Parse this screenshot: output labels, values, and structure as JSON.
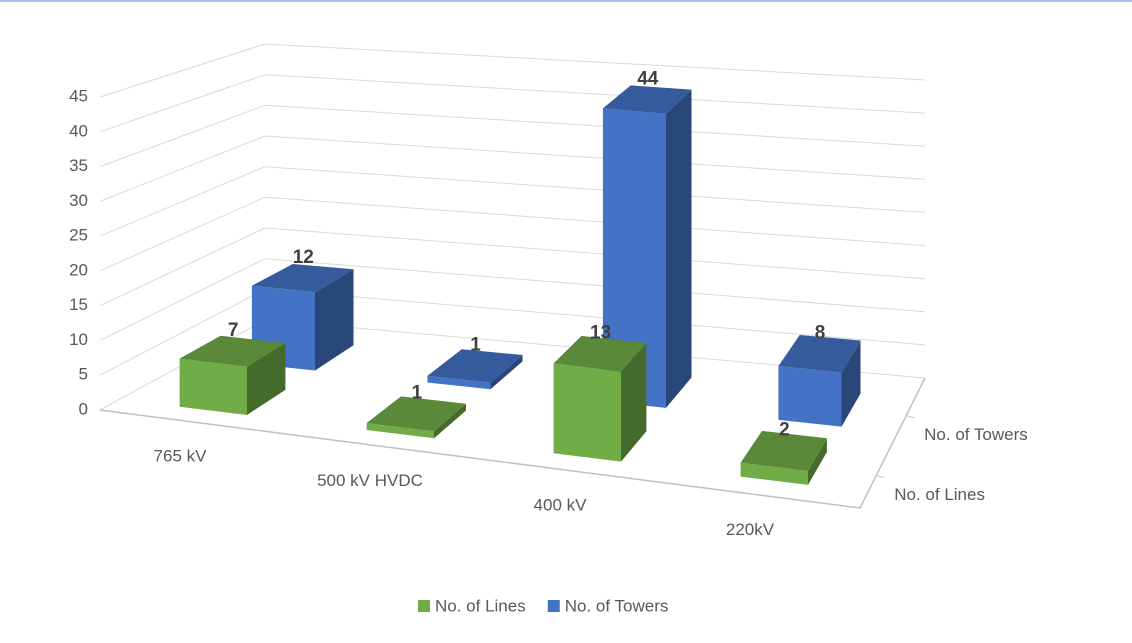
{
  "chart_data": {
    "type": "bar3d",
    "categories": [
      "765 kV",
      "500 kV HVDC",
      "400 kV",
      "220kV"
    ],
    "series": [
      {
        "name": "No. of Lines",
        "color": "#70ad47",
        "values": [
          7,
          1,
          13,
          2
        ]
      },
      {
        "name": "No. of Towers",
        "color": "#4472c4",
        "values": [
          12,
          1,
          44,
          8
        ]
      }
    ],
    "ylim": [
      0,
      45
    ],
    "yticks": [
      0,
      5,
      10,
      15,
      20,
      25,
      30,
      35,
      40,
      45
    ],
    "grid": true,
    "legend": "bottom"
  }
}
